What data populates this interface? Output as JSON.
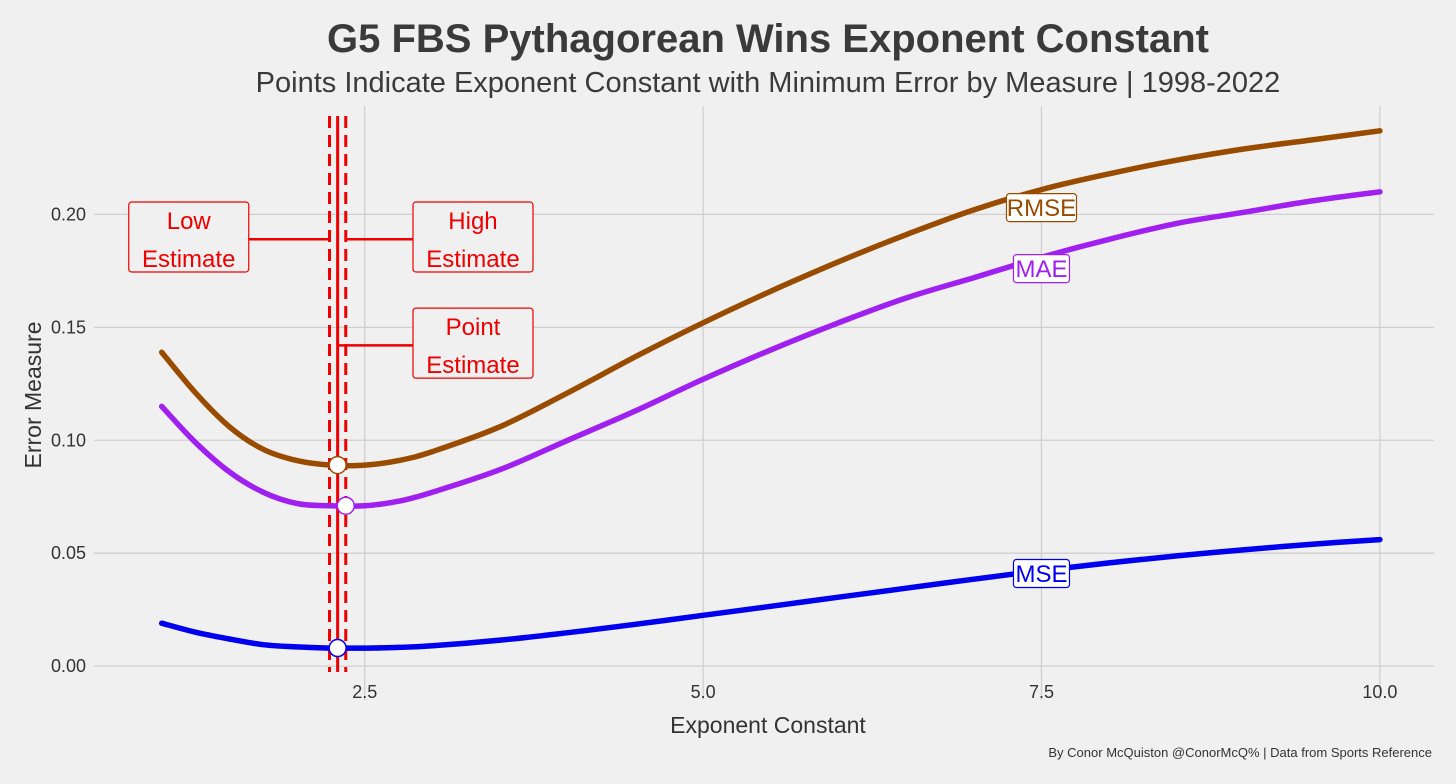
{
  "chart_data": {
    "type": "line",
    "title": "G5 FBS Pythagorean Wins Exponent Constant",
    "subtitle": "Points Indicate Exponent Constant with Minimum Error by Measure | 1998-2022",
    "xlabel": "Exponent Constant",
    "ylabel": "Error Measure",
    "caption": "By Conor McQuiston @ConorMcQ% | Data from Sports Reference",
    "xlim": [
      0.5,
      10.4
    ],
    "ylim": [
      -0.015,
      0.248
    ],
    "x_ticks": [
      {
        "value": 2.5,
        "label": "2.5"
      },
      {
        "value": 5.0,
        "label": "5.0"
      },
      {
        "value": 7.5,
        "label": "7.5"
      },
      {
        "value": 10.0,
        "label": "10.0"
      }
    ],
    "y_ticks": [
      {
        "value": 0.0,
        "label": "0.00"
      },
      {
        "value": 0.05,
        "label": "0.05"
      },
      {
        "value": 0.1,
        "label": "0.10"
      },
      {
        "value": 0.15,
        "label": "0.15"
      },
      {
        "value": 0.2,
        "label": "0.20"
      }
    ],
    "grid": true,
    "series": [
      {
        "name": "RMSE",
        "color": "#994c00",
        "x": [
          1.0,
          1.25,
          1.5,
          1.75,
          2.0,
          2.25,
          2.5,
          2.75,
          3.0,
          3.5,
          4.0,
          4.5,
          5.0,
          5.5,
          6.0,
          6.5,
          7.0,
          7.5,
          8.0,
          8.5,
          9.0,
          9.5,
          10.0
        ],
        "values": [
          0.139,
          0.121,
          0.106,
          0.096,
          0.091,
          0.089,
          0.089,
          0.091,
          0.095,
          0.106,
          0.121,
          0.137,
          0.152,
          0.166,
          0.179,
          0.191,
          0.202,
          0.211,
          0.218,
          0.224,
          0.229,
          0.233,
          0.237
        ],
        "label_x": 7.5,
        "label_y": 0.203,
        "min_point": {
          "x": 2.3,
          "y": 0.089
        }
      },
      {
        "name": "MAE",
        "color": "#a020f0",
        "x": [
          1.0,
          1.25,
          1.5,
          1.75,
          2.0,
          2.25,
          2.5,
          2.75,
          3.0,
          3.5,
          4.0,
          4.5,
          5.0,
          5.5,
          6.0,
          6.5,
          7.0,
          7.5,
          8.0,
          8.5,
          9.0,
          9.5,
          10.0
        ],
        "values": [
          0.115,
          0.099,
          0.086,
          0.077,
          0.072,
          0.071,
          0.071,
          0.073,
          0.077,
          0.087,
          0.1,
          0.113,
          0.127,
          0.14,
          0.152,
          0.163,
          0.172,
          0.181,
          0.189,
          0.196,
          0.201,
          0.206,
          0.21
        ],
        "label_x": 7.5,
        "label_y": 0.176,
        "min_point": {
          "x": 2.36,
          "y": 0.071
        }
      },
      {
        "name": "MSE",
        "color": "#0000ee",
        "x": [
          1.0,
          1.25,
          1.5,
          1.75,
          2.0,
          2.25,
          2.5,
          2.75,
          3.0,
          3.5,
          4.0,
          4.5,
          5.0,
          5.5,
          6.0,
          6.5,
          7.0,
          7.5,
          8.0,
          8.5,
          9.0,
          9.5,
          10.0
        ],
        "values": [
          0.019,
          0.015,
          0.012,
          0.0095,
          0.0085,
          0.008,
          0.008,
          0.0083,
          0.009,
          0.0115,
          0.0148,
          0.0185,
          0.0225,
          0.0265,
          0.0305,
          0.0345,
          0.0385,
          0.0423,
          0.0457,
          0.0488,
          0.0515,
          0.054,
          0.056
        ],
        "label_x": 7.5,
        "label_y": 0.041,
        "min_point": {
          "x": 2.3,
          "y": 0.008
        }
      }
    ],
    "vlines": [
      {
        "x": 2.24,
        "style": "dashed",
        "color": "#ee0000"
      },
      {
        "x": 2.3,
        "style": "solid",
        "color": "#ee0000"
      },
      {
        "x": 2.36,
        "style": "dashed",
        "color": "#ee0000"
      }
    ],
    "annotations": [
      {
        "lines": [
          "Low",
          "Estimate"
        ],
        "box_x": 1.2,
        "box_y": 0.19,
        "target_x": 2.24,
        "target_y": 0.189,
        "color": "#ee0000"
      },
      {
        "lines": [
          "High",
          "Estimate"
        ],
        "box_x": 3.3,
        "box_y": 0.19,
        "target_x": 2.36,
        "target_y": 0.189,
        "color": "#ee0000"
      },
      {
        "lines": [
          "Point",
          "Estimate"
        ],
        "box_x": 3.3,
        "box_y": 0.143,
        "target_x": 2.3,
        "target_y": 0.142,
        "color": "#ee0000"
      }
    ]
  }
}
